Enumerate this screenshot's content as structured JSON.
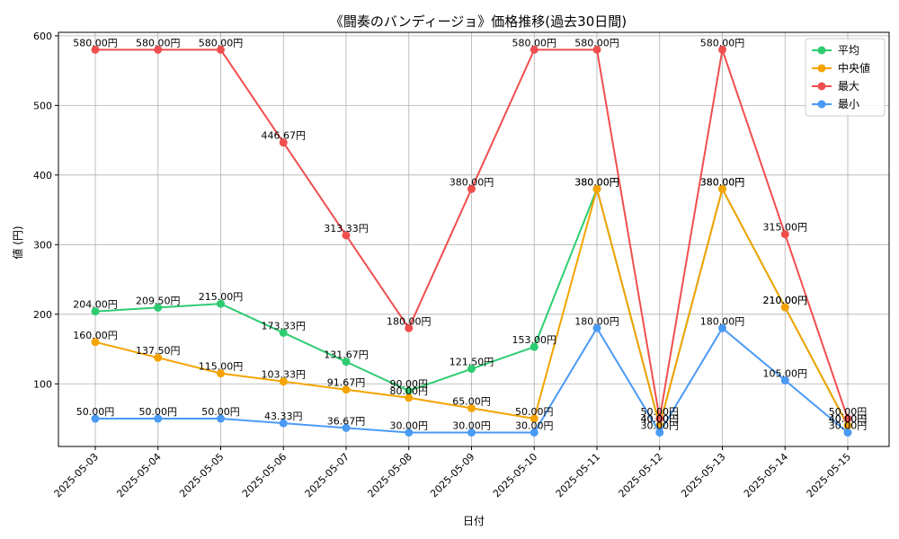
{
  "chart_data": {
    "type": "line",
    "title": "《闘奏のバンディージョ》価格推移(過去30日間)",
    "xlabel": "日付",
    "ylabel": "値 (円)",
    "ylim": [
      10,
      605
    ],
    "yticks": [
      100,
      200,
      300,
      400,
      500,
      600
    ],
    "grid": true,
    "legend_position": "top-right",
    "label_suffix": "円",
    "categories": [
      "2025-05-03",
      "2025-05-04",
      "2025-05-05",
      "2025-05-06",
      "2025-05-07",
      "2025-05-08",
      "2025-05-09",
      "2025-05-10",
      "2025-05-11",
      "2025-05-12",
      "2025-05-13",
      "2025-05-14",
      "2025-05-15"
    ],
    "series": [
      {
        "name": "平均",
        "color": "#2ecc71",
        "values": [
          204.0,
          209.5,
          215.0,
          173.33,
          131.67,
          90.0,
          121.5,
          153.0,
          380.0,
          40.0,
          380.0,
          210.0,
          40.0
        ]
      },
      {
        "name": "中央値",
        "color": "#f5a300",
        "values": [
          160.0,
          137.5,
          115.0,
          103.33,
          91.67,
          80.0,
          65.0,
          50.0,
          380.0,
          40.0,
          380.0,
          210.0,
          40.0
        ]
      },
      {
        "name": "最大",
        "color": "#f04e4e",
        "values": [
          580.0,
          580.0,
          580.0,
          446.67,
          313.33,
          180.0,
          380.0,
          580.0,
          580.0,
          50.0,
          580.0,
          315.0,
          50.0
        ]
      },
      {
        "name": "最小",
        "color": "#4a9af5",
        "values": [
          50.0,
          50.0,
          50.0,
          43.33,
          36.67,
          30.0,
          30.0,
          30.0,
          180.0,
          30.0,
          180.0,
          105.0,
          30.0
        ]
      }
    ]
  }
}
